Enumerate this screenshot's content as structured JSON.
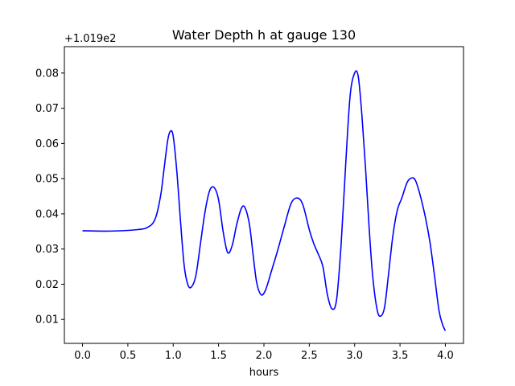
{
  "chart_data": {
    "type": "line",
    "title": "Water Depth h at gauge 130",
    "xlabel": "hours",
    "ylabel": "",
    "offset_label": "+1.019e2",
    "xlim": [
      -0.2,
      4.2
    ],
    "ylim": [
      0.0032,
      0.0875
    ],
    "xticks": [
      0.0,
      0.5,
      1.0,
      1.5,
      2.0,
      2.5,
      3.0,
      3.5,
      4.0
    ],
    "xtick_labels": [
      "0.0",
      "0.5",
      "1.0",
      "1.5",
      "2.0",
      "2.5",
      "3.0",
      "3.5",
      "4.0"
    ],
    "yticks": [
      0.01,
      0.02,
      0.03,
      0.04,
      0.05,
      0.06,
      0.07,
      0.08
    ],
    "ytick_labels": [
      "0.01",
      "0.02",
      "0.03",
      "0.04",
      "0.05",
      "0.06",
      "0.07",
      "0.08"
    ],
    "grid": false,
    "series": [
      {
        "color": "#0000ff",
        "x": [
          0.0,
          0.3,
          0.6,
          0.72,
          0.8,
          0.86,
          0.9,
          0.94,
          0.97,
          1.0,
          1.04,
          1.08,
          1.12,
          1.16,
          1.2,
          1.25,
          1.3,
          1.35,
          1.4,
          1.45,
          1.5,
          1.55,
          1.6,
          1.65,
          1.7,
          1.75,
          1.79,
          1.84,
          1.88,
          1.92,
          1.97,
          2.02,
          2.08,
          2.15,
          2.22,
          2.3,
          2.37,
          2.43,
          2.5,
          2.55,
          2.6,
          2.65,
          2.7,
          2.75,
          2.8,
          2.85,
          2.9,
          2.95,
          3.0,
          3.04,
          3.08,
          3.12,
          3.16,
          3.2,
          3.25,
          3.29,
          3.33,
          3.37,
          3.42,
          3.47,
          3.52,
          3.58,
          3.63,
          3.67,
          3.72,
          3.78,
          3.83,
          3.88,
          3.93,
          3.97,
          4.0
        ],
        "y": [
          0.0352,
          0.0351,
          0.0355,
          0.0362,
          0.0385,
          0.045,
          0.053,
          0.061,
          0.0635,
          0.062,
          0.052,
          0.038,
          0.0255,
          0.02,
          0.0192,
          0.0225,
          0.0315,
          0.0405,
          0.0465,
          0.0475,
          0.044,
          0.035,
          0.029,
          0.031,
          0.037,
          0.0415,
          0.0418,
          0.037,
          0.0285,
          0.0205,
          0.017,
          0.0185,
          0.0235,
          0.0295,
          0.036,
          0.043,
          0.0445,
          0.0425,
          0.0355,
          0.0315,
          0.0285,
          0.025,
          0.017,
          0.013,
          0.0155,
          0.031,
          0.0535,
          0.0735,
          0.08,
          0.079,
          0.068,
          0.053,
          0.036,
          0.022,
          0.0125,
          0.011,
          0.0135,
          0.022,
          0.0335,
          0.041,
          0.0445,
          0.049,
          0.0502,
          0.0495,
          0.0455,
          0.039,
          0.032,
          0.0225,
          0.0125,
          0.0085,
          0.0068
        ]
      }
    ]
  }
}
